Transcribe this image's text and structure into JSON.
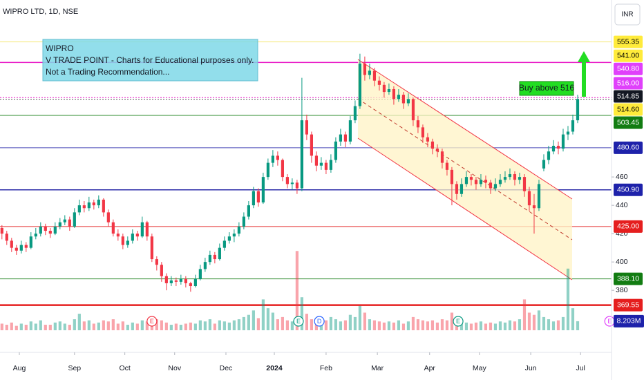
{
  "chart_data": {
    "type": "candlestick",
    "title": "WIPRO LTD, 1D, NSE",
    "currency": "INR",
    "up_color": "#089981",
    "down_color": "#f23645",
    "ylim": [
      336.2,
      584.9
    ],
    "yticks": [
      460,
      440,
      420,
      400,
      380
    ],
    "xlim": [
      -0.4,
      126
    ],
    "xticks": [
      {
        "value": 3.6,
        "label": "Aug"
      },
      {
        "value": 15,
        "label": "Sep"
      },
      {
        "value": 25.4,
        "label": "Oct"
      },
      {
        "value": 35.7,
        "label": "Nov"
      },
      {
        "value": 46.3,
        "label": "Dec"
      },
      {
        "value": 56.3,
        "label": "2024",
        "bold": true
      },
      {
        "value": 67,
        "label": "Feb"
      },
      {
        "value": 77.6,
        "label": "Mar"
      },
      {
        "value": 88.4,
        "label": "Apr"
      },
      {
        "value": 98.7,
        "label": "May"
      },
      {
        "value": 109.3,
        "label": "Jun"
      },
      {
        "value": 119.6,
        "label": "Jul"
      }
    ],
    "ohlc": [
      [
        424,
        426,
        416,
        420
      ],
      [
        420,
        422,
        412,
        415
      ],
      [
        415,
        417,
        407,
        410
      ],
      [
        410,
        412,
        405,
        408
      ],
      [
        408,
        415,
        406,
        412
      ],
      [
        412,
        414,
        407,
        410
      ],
      [
        410,
        421,
        409,
        418
      ],
      [
        418,
        424,
        416,
        420
      ],
      [
        420,
        428,
        418,
        425
      ],
      [
        425,
        427,
        419,
        422
      ],
      [
        422,
        424,
        417,
        420
      ],
      [
        420,
        428,
        419,
        425
      ],
      [
        425,
        431,
        423,
        428
      ],
      [
        428,
        433,
        426,
        430
      ],
      [
        430,
        432,
        422,
        425
      ],
      [
        425,
        438,
        424,
        435
      ],
      [
        435,
        444,
        433,
        440
      ],
      [
        440,
        443,
        435,
        438
      ],
      [
        438,
        446,
        436,
        442
      ],
      [
        442,
        444,
        437,
        440
      ],
      [
        440,
        447,
        438,
        444
      ],
      [
        444,
        445,
        432,
        435
      ],
      [
        435,
        437,
        425,
        428
      ],
      [
        428,
        430,
        418,
        420
      ],
      [
        420,
        423,
        415,
        418
      ],
      [
        418,
        420,
        409,
        412
      ],
      [
        412,
        418,
        410,
        415
      ],
      [
        415,
        423,
        413,
        420
      ],
      [
        420,
        422,
        415,
        418
      ],
      [
        418,
        432,
        417,
        428
      ],
      [
        428,
        429,
        415,
        418
      ],
      [
        418,
        420,
        400,
        402
      ],
      [
        402,
        404,
        394,
        398
      ],
      [
        398,
        400,
        386,
        390
      ],
      [
        390,
        392,
        380,
        385
      ],
      [
        385,
        390,
        383,
        387
      ],
      [
        387,
        389,
        383,
        386
      ],
      [
        386,
        391,
        384,
        388
      ],
      [
        388,
        390,
        382,
        385
      ],
      [
        385,
        386,
        379,
        383
      ],
      [
        383,
        391,
        382,
        388
      ],
      [
        388,
        398,
        387,
        395
      ],
      [
        395,
        403,
        393,
        400
      ],
      [
        400,
        408,
        398,
        405
      ],
      [
        405,
        407,
        399,
        402
      ],
      [
        402,
        413,
        401,
        410
      ],
      [
        410,
        418,
        408,
        415
      ],
      [
        415,
        421,
        413,
        418
      ],
      [
        418,
        423,
        414,
        420
      ],
      [
        420,
        428,
        418,
        425
      ],
      [
        425,
        435,
        423,
        432
      ],
      [
        432,
        443,
        430,
        440
      ],
      [
        440,
        453,
        438,
        450
      ],
      [
        450,
        452,
        439,
        442
      ],
      [
        442,
        463,
        441,
        460
      ],
      [
        460,
        473,
        458,
        470
      ],
      [
        470,
        479,
        467,
        475
      ],
      [
        475,
        478,
        468,
        472
      ],
      [
        472,
        473,
        457,
        460
      ],
      [
        460,
        462,
        452,
        455
      ],
      [
        455,
        459,
        451,
        456
      ],
      [
        456,
        458,
        448,
        452
      ],
      [
        452,
        530,
        450,
        500
      ],
      [
        500,
        504,
        486,
        490
      ],
      [
        490,
        492,
        470,
        475
      ],
      [
        475,
        478,
        464,
        468
      ],
      [
        468,
        474,
        465,
        470
      ],
      [
        470,
        472,
        462,
        465
      ],
      [
        465,
        476,
        463,
        472
      ],
      [
        472,
        488,
        470,
        485
      ],
      [
        485,
        494,
        482,
        490
      ],
      [
        490,
        492,
        481,
        485
      ],
      [
        485,
        503,
        483,
        500
      ],
      [
        500,
        514,
        498,
        510
      ],
      [
        510,
        547,
        508,
        540
      ],
      [
        540,
        545,
        528,
        532
      ],
      [
        532,
        540,
        529,
        535
      ],
      [
        535,
        537,
        524,
        528
      ],
      [
        528,
        531,
        521,
        525
      ],
      [
        525,
        527,
        516,
        520
      ],
      [
        520,
        526,
        518,
        522
      ],
      [
        522,
        524,
        511,
        515
      ],
      [
        515,
        522,
        513,
        518
      ],
      [
        518,
        520,
        508,
        512
      ],
      [
        512,
        519,
        510,
        515
      ],
      [
        515,
        516,
        496,
        500
      ],
      [
        500,
        503,
        491,
        495
      ],
      [
        495,
        497,
        484,
        488
      ],
      [
        488,
        491,
        481,
        485
      ],
      [
        485,
        487,
        476,
        480
      ],
      [
        480,
        483,
        474,
        478
      ],
      [
        478,
        480,
        466,
        470
      ],
      [
        470,
        472,
        461,
        465
      ],
      [
        465,
        467,
        440,
        455
      ],
      [
        455,
        457,
        444,
        448
      ],
      [
        448,
        459,
        446,
        455
      ],
      [
        455,
        464,
        453,
        460
      ],
      [
        460,
        462,
        454,
        458
      ],
      [
        458,
        460,
        451,
        455
      ],
      [
        455,
        462,
        453,
        458
      ],
      [
        458,
        461,
        452,
        456
      ],
      [
        456,
        458,
        448,
        452
      ],
      [
        452,
        459,
        450,
        455
      ],
      [
        455,
        462,
        453,
        458
      ],
      [
        458,
        464,
        456,
        460
      ],
      [
        460,
        466,
        458,
        462
      ],
      [
        462,
        464,
        454,
        458
      ],
      [
        458,
        463,
        455,
        460
      ],
      [
        460,
        462,
        446,
        450
      ],
      [
        450,
        453,
        436,
        440
      ],
      [
        440,
        448,
        420,
        438
      ],
      [
        438,
        458,
        436,
        455
      ],
      [
        466,
        476,
        464,
        472
      ],
      [
        472,
        482,
        469,
        478
      ],
      [
        478,
        486,
        476,
        482
      ],
      [
        482,
        485,
        476,
        480
      ],
      [
        480,
        494,
        478,
        490
      ],
      [
        490,
        496,
        486,
        492
      ],
      [
        492,
        504,
        490,
        500
      ],
      [
        500,
        518,
        498,
        515
      ]
    ],
    "volume_ylim": [
      0,
      300
    ],
    "volume": [
      6,
      5,
      7,
      4,
      6,
      5,
      8,
      6,
      9,
      5,
      5,
      7,
      8,
      6,
      5,
      10,
      15,
      8,
      9,
      6,
      7,
      9,
      8,
      10,
      6,
      8,
      5,
      7,
      6,
      9,
      8,
      12,
      10,
      9,
      7,
      5,
      6,
      5,
      6,
      7,
      6,
      9,
      8,
      10,
      6,
      9,
      8,
      7,
      9,
      10,
      12,
      14,
      18,
      11,
      28,
      20,
      16,
      10,
      12,
      9,
      8,
      72,
      30,
      15,
      10,
      8,
      7,
      9,
      12,
      10,
      8,
      9,
      14,
      12,
      22,
      16,
      10,
      9,
      8,
      7,
      8,
      7,
      9,
      6,
      8,
      12,
      10,
      9,
      8,
      9,
      7,
      10,
      9,
      16,
      12,
      8,
      7,
      6,
      7,
      8,
      6,
      7,
      6,
      8,
      7,
      9,
      8,
      10,
      28,
      16,
      14,
      18,
      12,
      10,
      8,
      9,
      12,
      56,
      20,
      8.203
    ],
    "volume_last_label": "8.203M",
    "levels": [
      {
        "value": 555.35,
        "label": "555.35",
        "bg": "#ffeb3b",
        "fg": "#000000",
        "line": "solid",
        "line_color": "#f6e87a",
        "width": 1
      },
      {
        "value": 541,
        "label": "541.00",
        "bg": "#ffeb3b",
        "fg": "#000000",
        "line": "none"
      },
      {
        "value": 540.8,
        "label": "540.80",
        "bg": "#e040fb",
        "fg": "#ffffff",
        "line": "solid",
        "line_color": "#e91ec8",
        "width": 1.5
      },
      {
        "value": 516,
        "label": "516.00",
        "bg": "#e040fb",
        "fg": "#ffffff",
        "line": "dotted",
        "line_color": "#e91ec8",
        "width": 1
      },
      {
        "value": 514.85,
        "label": "514.85",
        "bg": "#131722",
        "fg": "#ffffff",
        "line": "dotted",
        "line_color": "#555555",
        "width": 1
      },
      {
        "value": 514.6,
        "label": "514.60",
        "bg": "#ffeb3b",
        "fg": "#000000",
        "line": "none"
      },
      {
        "value": 503.45,
        "label": "503.45",
        "bg": "#127c12",
        "fg": "#ffffff",
        "line": "solid",
        "line_color": "#2e8b2e",
        "width": 1
      },
      {
        "value": 480.6,
        "label": "480.60",
        "bg": "#1e22aa",
        "fg": "#ffffff",
        "line": "solid",
        "line_color": "#4a4ab8",
        "width": 1
      },
      {
        "value": 450.9,
        "label": "450.90",
        "bg": "#1e22aa",
        "fg": "#ffffff",
        "line": "solid",
        "line_color": "#2a2aa8",
        "width": 1.5
      },
      {
        "value": 425,
        "label": "425.00",
        "bg": "#e51e1e",
        "fg": "#ffffff",
        "line": "solid",
        "line_color": "#e53030",
        "width": 1
      },
      {
        "value": 388.1,
        "label": "388.10",
        "bg": "#127c12",
        "fg": "#ffffff",
        "line": "solid",
        "line_color": "#2e8b2e",
        "width": 1
      },
      {
        "value": 369.55,
        "label": "369.55",
        "bg": "#e51e1e",
        "fg": "#ffffff",
        "line": "solid",
        "line_color": "#e51e1e",
        "width": 2.5
      }
    ],
    "note_lines": [
      "WIPRO",
      "V TRADE POINT - Charts for Educational purposes only.",
      "Not a Trading Recommendation..."
    ],
    "buy_label": "Buy above 516",
    "events": [
      {
        "index": 31,
        "label": "E",
        "color": "#f23645"
      },
      {
        "index": 61.3,
        "label": "E",
        "color": "#089981"
      },
      {
        "index": 65.6,
        "label": "D",
        "color": "#2962ff"
      },
      {
        "index": 94.3,
        "label": "E",
        "color": "#089981"
      },
      {
        "index": 125.6,
        "label": "E",
        "color": "#e040fb"
      }
    ]
  }
}
